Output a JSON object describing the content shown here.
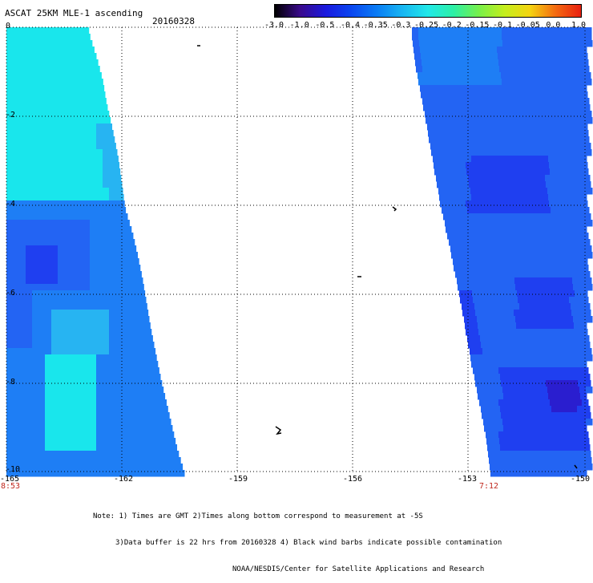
{
  "header": {
    "title": "ASCAT 25KM MLE-1 ascending",
    "date": "20160328"
  },
  "colorbar": {
    "labels": [
      "-3.0",
      "-1.0",
      "-0.5",
      "-0.4",
      "-0.35",
      "-0.3",
      "-0.25",
      "-0.2",
      "-0.15",
      "-0.1",
      "-0.05",
      "0.0",
      "1.0"
    ],
    "colors": [
      "#000000",
      "#3a0a8c",
      "#1a1adf",
      "#0a46f0",
      "#0a7cf4",
      "#18b6f2",
      "#21e8e8",
      "#2cf0a6",
      "#77f04a",
      "#c4ee1c",
      "#f4d410",
      "#f46a10",
      "#e82010"
    ]
  },
  "map": {
    "lat_labels": [
      "0",
      "-2",
      "-4",
      "-6",
      "-8",
      "-10"
    ],
    "lon_labels": [
      "-165",
      "-162",
      "-159",
      "-156",
      "-153",
      "-150"
    ],
    "left_time": "8:53",
    "right_time": "7:12",
    "colors": {
      "cyan": "#19e6ec",
      "light_blue": "#27b4f2",
      "mid_blue": "#1e7ef5",
      "blue": "#2364f3",
      "deep_blue": "#1f3ff0",
      "violet": "#2a1ecf"
    }
  },
  "notes": {
    "line1": "Note: 1) Times are GMT 2)Times along bottom correspond to measurement at -5S",
    "line2": "3)Data buffer is 22 hrs from 20160328 4) Black wind barbs indicate possible contamination",
    "line3": "NOAA/NESDIS/Center for Satellite Applications and Research"
  }
}
